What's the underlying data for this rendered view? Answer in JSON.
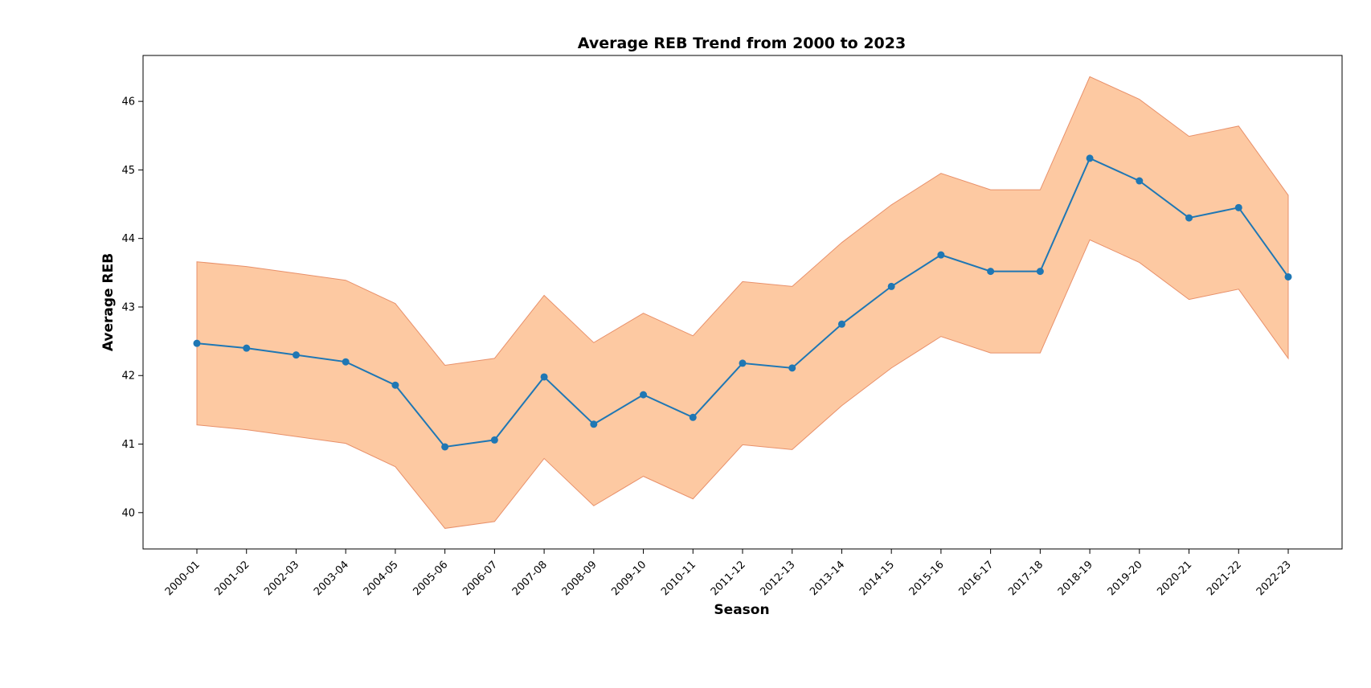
{
  "chart_data": {
    "type": "line",
    "title": "Average REB Trend from 2000 to 2023",
    "xlabel": "Season",
    "ylabel": "Average REB",
    "categories": [
      "2000-01",
      "2001-02",
      "2002-03",
      "2003-04",
      "2004-05",
      "2005-06",
      "2006-07",
      "2007-08",
      "2008-09",
      "2009-10",
      "2010-11",
      "2011-12",
      "2012-13",
      "2013-14",
      "2014-15",
      "2015-16",
      "2016-17",
      "2017-18",
      "2018-19",
      "2019-20",
      "2020-21",
      "2021-22",
      "2022-23"
    ],
    "series": [
      {
        "values": [
          42.47,
          42.4,
          42.3,
          42.2,
          41.86,
          40.96,
          41.06,
          41.98,
          41.29,
          41.72,
          41.39,
          42.18,
          42.11,
          42.75,
          43.3,
          43.76,
          43.52,
          43.52,
          45.17,
          44.84,
          44.3,
          44.45,
          43.44
        ]
      }
    ],
    "band": {
      "lower": [
        41.28,
        41.21,
        41.11,
        41.01,
        40.67,
        39.77,
        39.87,
        40.79,
        40.1,
        40.53,
        40.2,
        40.99,
        40.92,
        41.56,
        42.11,
        42.57,
        42.33,
        42.33,
        43.98,
        43.65,
        43.11,
        43.26,
        42.25
      ],
      "upper": [
        43.66,
        43.59,
        43.49,
        43.39,
        43.05,
        42.15,
        42.25,
        43.17,
        42.48,
        42.91,
        42.58,
        43.37,
        43.3,
        43.94,
        44.49,
        44.95,
        44.71,
        44.71,
        46.36,
        46.03,
        45.49,
        45.64,
        44.63
      ]
    },
    "yticks": [
      40,
      41,
      42,
      43,
      44,
      45,
      46
    ],
    "ylim": [
      39.47,
      46.67
    ],
    "grid": false,
    "legend": "none",
    "colors": {
      "line": "#1f77b4",
      "band_fill": "#fdc9a2",
      "band_edge": "#e8906a"
    }
  }
}
